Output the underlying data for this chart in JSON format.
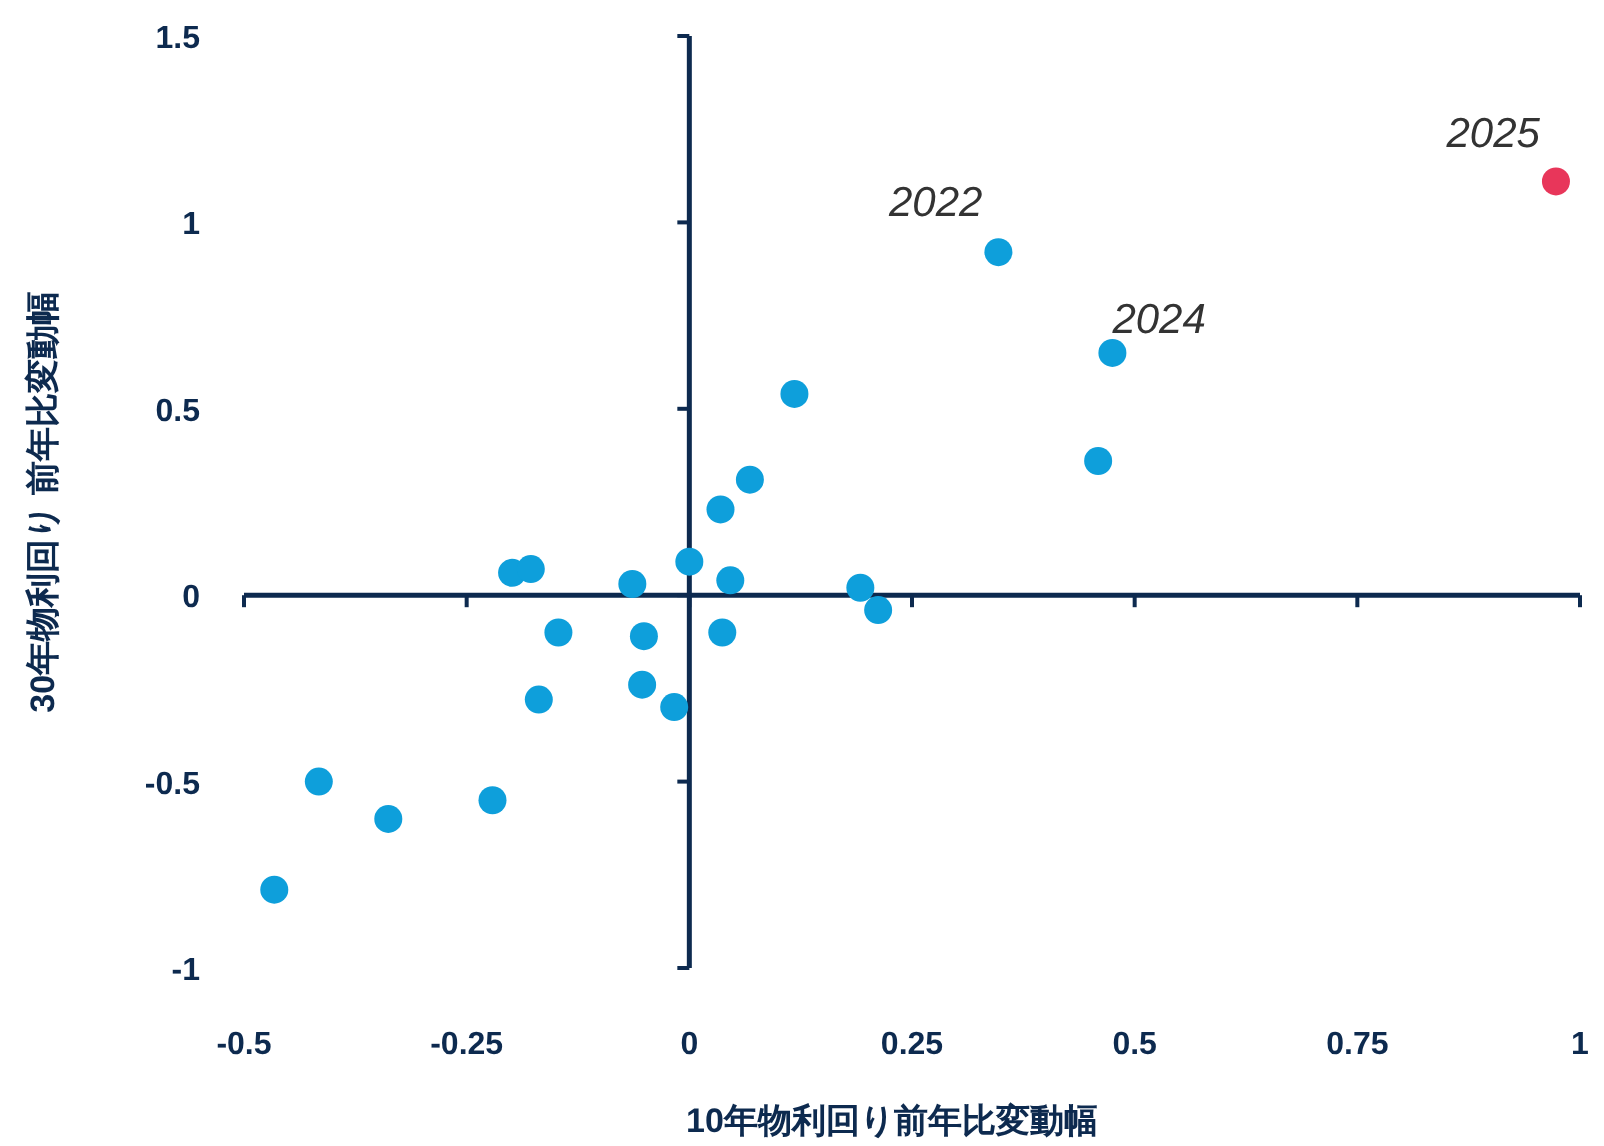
{
  "chart_data": {
    "type": "scatter",
    "xlabel": "10年物利回り前年比変動幅",
    "ylabel": "30年物利回り 前年比変動幅",
    "xlim": [
      -0.5,
      1
    ],
    "ylim": [
      -1,
      1.5
    ],
    "xticks": [
      -0.5,
      -0.25,
      0,
      0.25,
      0.5,
      0.75,
      1
    ],
    "yticks": [
      -1,
      -0.5,
      0,
      0.5,
      1,
      1.5
    ],
    "marker": "circle",
    "series": [
      {
        "x": [
          -0.466,
          -0.416,
          -0.338,
          -0.221,
          -0.199,
          -0.178,
          -0.147,
          -0.169,
          -0.064,
          -0.051,
          -0.053,
          -0.017,
          0.0,
          0.035,
          0.068,
          0.046,
          0.037,
          0.118,
          0.192,
          0.212,
          0.347,
          0.459,
          0.475,
          0.973
        ],
        "values": [
          -0.79,
          -0.5,
          -0.6,
          -0.55,
          0.06,
          0.07,
          -0.1,
          -0.28,
          0.03,
          -0.11,
          -0.24,
          -0.3,
          0.09,
          0.23,
          0.31,
          0.04,
          -0.1,
          0.54,
          0.02,
          -0.04,
          0.92,
          0.36,
          0.65,
          1.11
        ],
        "colors": [
          "#0e9fdb",
          "#0e9fdb",
          "#0e9fdb",
          "#0e9fdb",
          "#0e9fdb",
          "#0e9fdb",
          "#0e9fdb",
          "#0e9fdb",
          "#0e9fdb",
          "#0e9fdb",
          "#0e9fdb",
          "#0e9fdb",
          "#0e9fdb",
          "#0e9fdb",
          "#0e9fdb",
          "#0e9fdb",
          "#0e9fdb",
          "#0e9fdb",
          "#0e9fdb",
          "#0e9fdb",
          "#0e9fdb",
          "#0e9fdb",
          "#0e9fdb",
          "#e8365a"
        ]
      }
    ],
    "annotations": [
      {
        "text": "2022",
        "x": 0.347,
        "y": 0.92
      },
      {
        "text": "2024",
        "x": 0.475,
        "y": 0.65
      },
      {
        "text": "2025",
        "x": 0.973,
        "y": 1.11
      }
    ]
  }
}
